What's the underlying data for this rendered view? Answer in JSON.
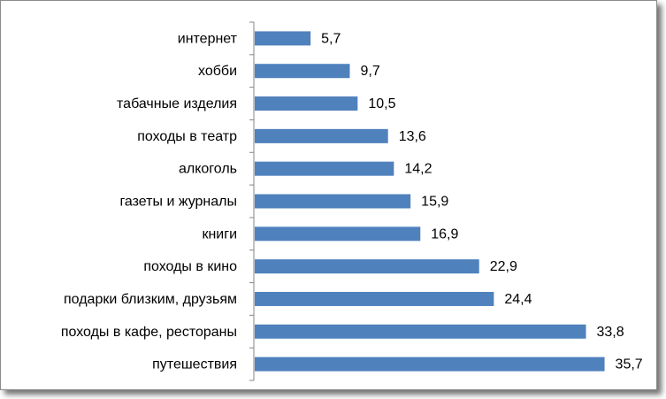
{
  "chart_data": {
    "type": "bar",
    "orientation": "horizontal",
    "categories": [
      "путешествия",
      "походы в кафе, рестораны",
      "подарки близким, друзьям",
      "походы в кино",
      "книги",
      "газеты и журналы",
      "алкоголь",
      "походы в театр",
      "табачные изделия",
      "хобби",
      "интернет"
    ],
    "values": [
      35.7,
      33.8,
      24.4,
      22.9,
      16.9,
      15.9,
      14.2,
      13.6,
      10.5,
      9.7,
      5.7
    ],
    "value_labels": [
      "35,7",
      "33,8",
      "24,4",
      "22,9",
      "16,9",
      "15,9",
      "14,2",
      "13,6",
      "10,5",
      "9,7",
      "5,7"
    ],
    "title": "",
    "xlabel": "",
    "ylabel": "",
    "xlim": [
      0,
      40
    ],
    "grid": false,
    "legend": "none",
    "bar_color": "#4f81bd"
  }
}
